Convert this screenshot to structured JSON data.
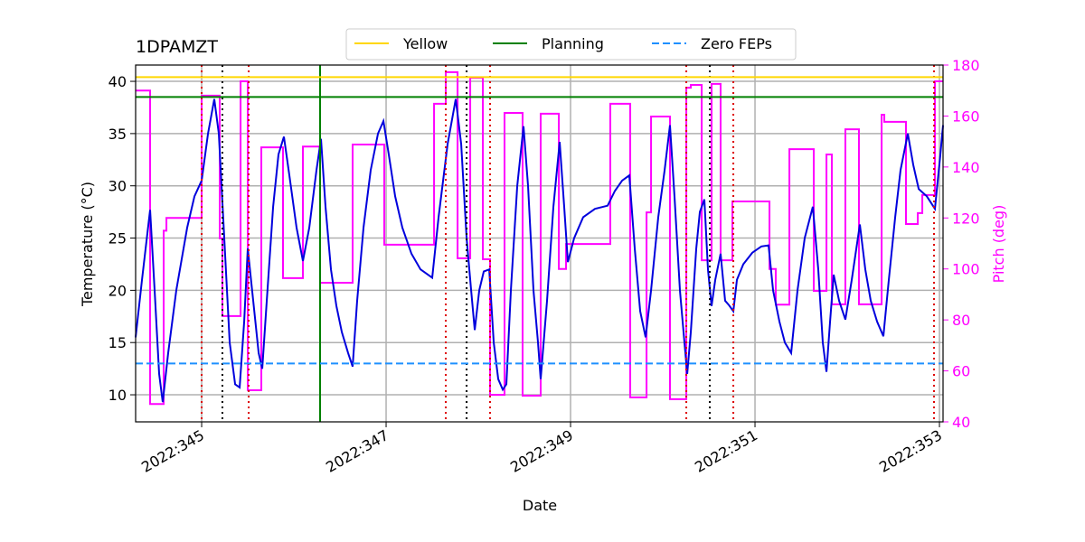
{
  "chart_data": {
    "type": "line",
    "title": "1DPAMZT",
    "xlabel": "Date",
    "ylabel": "Temperature ($^\\circ$C)",
    "y2label": "Pitch (deg)",
    "xlim": [
      344.284,
      353.039
    ],
    "xticks": [
      {
        "value": 345,
        "label": "2022:345"
      },
      {
        "value": 347,
        "label": "2022:347"
      },
      {
        "value": 349,
        "label": "2022:349"
      },
      {
        "value": 351,
        "label": "2022:351"
      },
      {
        "value": 353,
        "label": "2022:353"
      }
    ],
    "ylim": [
      7.41,
      41.56
    ],
    "yticks": [
      10,
      15,
      20,
      25,
      30,
      35,
      40
    ],
    "y2lim": [
      40,
      180
    ],
    "y2ticks": [
      40,
      60,
      80,
      100,
      120,
      140,
      160,
      180
    ],
    "grid": true,
    "legend": "top",
    "hlines": [
      {
        "name": "Yellow",
        "value": 40.4,
        "color": "#ffd700",
        "style": "solid"
      },
      {
        "name": "Planning",
        "value": 38.5,
        "color": "#008000",
        "style": "solid"
      },
      {
        "name": "Zero FEPs",
        "value": 13,
        "color": "#1e90ff",
        "style": "dashed"
      }
    ],
    "vlines": [
      {
        "x": 345.0,
        "color": "#dd0000",
        "style": "dotted"
      },
      {
        "x": 345.51,
        "color": "#dd0000",
        "style": "dotted"
      },
      {
        "x": 347.647,
        "color": "#dd0000",
        "style": "dotted"
      },
      {
        "x": 348.127,
        "color": "#dd0000",
        "style": "dotted"
      },
      {
        "x": 350.255,
        "color": "#dd0000",
        "style": "dotted"
      },
      {
        "x": 350.765,
        "color": "#dd0000",
        "style": "dotted"
      },
      {
        "x": 352.941,
        "color": "#dd0000",
        "style": "dotted"
      },
      {
        "x": 345.225,
        "color": "#000000",
        "style": "dotted"
      },
      {
        "x": 347.873,
        "color": "#000000",
        "style": "dotted"
      },
      {
        "x": 350.51,
        "color": "#000000",
        "style": "dotted"
      },
      {
        "x": 346.284,
        "color": "#008000",
        "style": "solid"
      }
    ],
    "series": [
      {
        "color": "#ff00ff",
        "axis": "y2",
        "step": "post",
        "x": [
          344.284,
          344.441,
          344.588,
          344.618,
          345.0,
          345.196,
          345.225,
          345.422,
          345.5,
          345.647,
          345.882,
          346.098,
          346.284,
          346.637,
          346.98,
          347.52,
          347.647,
          347.775,
          347.912,
          348.049,
          348.127,
          348.284,
          348.48,
          348.676,
          348.873,
          348.951,
          349.431,
          349.647,
          349.824,
          349.873,
          350.078,
          350.255,
          350.304,
          350.422,
          350.529,
          350.627,
          350.755,
          351.157,
          351.225,
          351.373,
          351.637,
          351.775,
          351.833,
          351.98,
          352.127,
          352.373,
          352.402,
          352.637,
          352.765,
          352.814,
          352.951,
          353.039
        ],
        "values": [
          170,
          47,
          115,
          120,
          168,
          112,
          81.5,
          173.6,
          52.4,
          147.7,
          96.4,
          148,
          94.6,
          148.8,
          109.5,
          164.8,
          177.2,
          104.2,
          175,
          103.8,
          50.6,
          161.2,
          50.3,
          160.9,
          100,
          109.8,
          164.8,
          49.6,
          122.2,
          159.8,
          48.9,
          171.1,
          172.2,
          103.4,
          172.6,
          103.4,
          126.5,
          100,
          86,
          147,
          91.4,
          144.9,
          86.1,
          154.8,
          86.1,
          160.5,
          157.7,
          117.6,
          121.9,
          129,
          173.6,
          173.6
        ]
      },
      {
        "color": "#0000dd",
        "axis": "y",
        "x": [
          344.284,
          344.353,
          344.441,
          344.49,
          344.539,
          344.578,
          344.637,
          344.725,
          344.843,
          344.922,
          345.0,
          345.069,
          345.137,
          345.186,
          345.245,
          345.304,
          345.363,
          345.412,
          345.461,
          345.5,
          345.559,
          345.618,
          345.657,
          345.706,
          345.775,
          345.833,
          345.892,
          345.951,
          346.029,
          346.098,
          346.167,
          346.245,
          346.294,
          346.343,
          346.402,
          346.461,
          346.52,
          346.588,
          346.637,
          346.686,
          346.755,
          346.833,
          346.912,
          346.971,
          347.029,
          347.098,
          347.176,
          347.275,
          347.373,
          347.5,
          347.569,
          347.667,
          347.755,
          347.814,
          347.873,
          347.922,
          347.961,
          348.01,
          348.059,
          348.118,
          348.167,
          348.216,
          348.265,
          348.304,
          348.353,
          348.422,
          348.49,
          348.539,
          348.598,
          348.647,
          348.676,
          348.745,
          348.814,
          348.882,
          348.931,
          348.971,
          349.039,
          349.137,
          349.265,
          349.402,
          349.48,
          349.559,
          349.637,
          349.696,
          349.755,
          349.814,
          349.873,
          349.951,
          350.02,
          350.078,
          350.127,
          350.186,
          350.235,
          350.265,
          350.304,
          350.363,
          350.402,
          350.451,
          350.49,
          350.529,
          350.569,
          350.627,
          350.676,
          350.716,
          350.765,
          350.804,
          350.873,
          350.971,
          351.069,
          351.147,
          351.196,
          351.265,
          351.324,
          351.392,
          351.461,
          351.539,
          351.627,
          351.686,
          351.735,
          351.775,
          351.814,
          351.853,
          351.912,
          351.98,
          352.049,
          352.137,
          352.196,
          352.255,
          352.324,
          352.392,
          352.451,
          352.52,
          352.578,
          352.657,
          352.716,
          352.775,
          352.863,
          352.951,
          353.01,
          353.039
        ],
        "values": [
          15.5,
          21,
          27.7,
          20,
          12,
          9.3,
          14,
          20,
          26,
          29,
          30.5,
          35,
          38.3,
          35,
          25,
          15,
          11,
          10.7,
          17,
          24,
          19,
          14,
          12.5,
          19,
          28,
          33,
          34.7,
          31,
          26,
          22.8,
          26,
          31.5,
          34.5,
          28,
          22,
          18.5,
          16,
          14,
          12.7,
          19,
          26,
          31.5,
          35,
          36.2,
          33,
          29,
          26,
          23.5,
          22,
          21.2,
          27,
          34,
          38.3,
          34,
          25,
          20,
          16.2,
          20,
          21.8,
          22,
          15,
          11.5,
          10.5,
          11,
          20,
          30,
          35.7,
          30,
          20,
          15,
          11.5,
          19,
          28,
          34.2,
          28,
          22.7,
          25,
          27,
          27.8,
          28.1,
          29.5,
          30.5,
          31,
          24,
          18,
          15.5,
          20,
          27,
          31.5,
          35.8,
          29,
          20,
          15,
          12,
          16,
          24,
          27.5,
          28.7,
          22,
          18.5,
          21,
          23.5,
          19,
          18.6,
          18,
          21,
          22.5,
          23.6,
          24.2,
          24.3,
          20,
          17,
          15,
          14,
          20,
          25,
          28,
          22,
          15,
          12.2,
          17,
          21.5,
          19,
          17.2,
          21,
          26.3,
          22,
          19,
          17,
          15.6,
          21,
          27,
          31.5,
          35,
          32,
          29.7,
          29,
          27.8,
          33,
          35.8
        ]
      }
    ]
  }
}
